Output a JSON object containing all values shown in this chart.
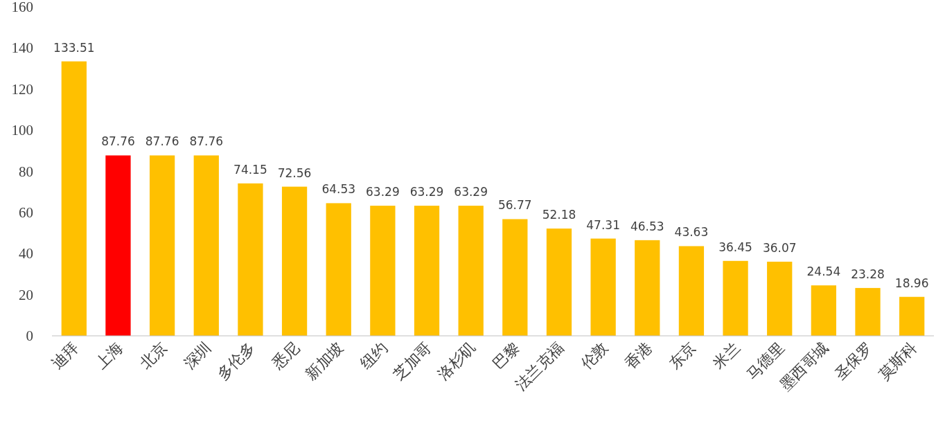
{
  "chart_data": {
    "type": "bar",
    "categories": [
      "迪拜",
      "上海",
      "北京",
      "深圳",
      "多伦多",
      "悉尼",
      "新加坡",
      "纽约",
      "芝加哥",
      "洛杉矶",
      "巴黎",
      "法兰克福",
      "伦敦",
      "香港",
      "东京",
      "米兰",
      "马德里",
      "墨西哥城",
      "圣保罗",
      "莫斯科"
    ],
    "values": [
      133.51,
      87.76,
      87.76,
      87.76,
      74.15,
      72.56,
      64.53,
      63.29,
      63.29,
      63.29,
      56.77,
      52.18,
      47.31,
      46.53,
      43.63,
      36.45,
      36.07,
      24.54,
      23.28,
      18.96
    ],
    "colors": [
      "#ffc000",
      "#ff0000",
      "#ffc000",
      "#ffc000",
      "#ffc000",
      "#ffc000",
      "#ffc000",
      "#ffc000",
      "#ffc000",
      "#ffc000",
      "#ffc000",
      "#ffc000",
      "#ffc000",
      "#ffc000",
      "#ffc000",
      "#ffc000",
      "#ffc000",
      "#ffc000",
      "#ffc000",
      "#ffc000"
    ],
    "ylim": [
      0,
      160
    ],
    "yticks": [
      0,
      20,
      40,
      60,
      80,
      100,
      120,
      140,
      160
    ],
    "data_labels": true
  }
}
